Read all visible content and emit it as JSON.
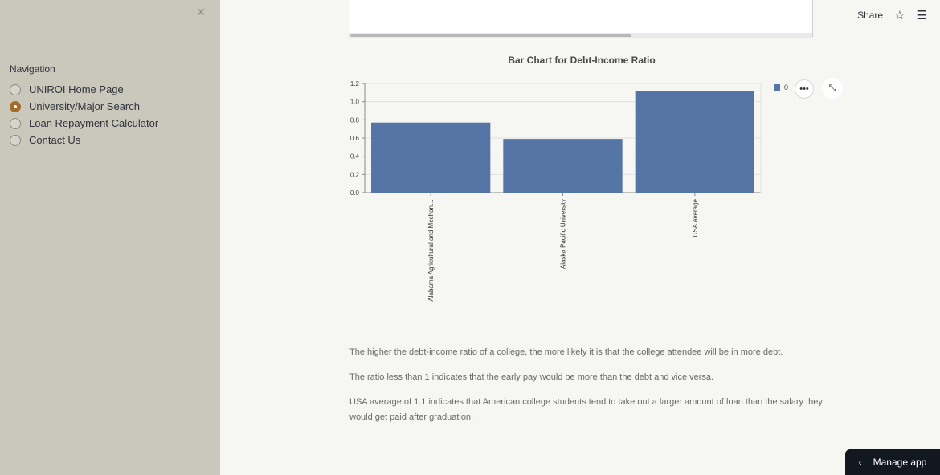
{
  "sidebar": {
    "close_icon": "×",
    "nav_title": "Navigation",
    "items": [
      {
        "label": "UNIROI Home Page",
        "selected": false
      },
      {
        "label": "University/Major Search",
        "selected": true
      },
      {
        "label": "Loan Repayment Calculator",
        "selected": false
      },
      {
        "label": "Contact Us",
        "selected": false
      }
    ]
  },
  "header": {
    "share_label": "Share",
    "star_icon": "☆",
    "menu_icon": "☰"
  },
  "chart": {
    "title": "Bar Chart for Debt-Income Ratio",
    "legend_label": "0",
    "more_icon": "•••",
    "expand_icon": "⤡"
  },
  "chart_data": {
    "type": "bar",
    "categories": [
      "Alabama Agricultural and Mechan…",
      "Alaska Pacific University",
      "USA Average"
    ],
    "values": [
      0.77,
      0.59,
      1.12
    ],
    "ylim": [
      0,
      1.2
    ],
    "yticks": [
      "0.0",
      "0.2",
      "0.4",
      "0.6",
      "0.8",
      "1.0",
      "1.2"
    ],
    "series": [
      {
        "name": "0",
        "values": [
          0.77,
          0.59,
          1.12
        ]
      }
    ],
    "bar_color": "#5575a7",
    "grid": true,
    "legend": "top-right"
  },
  "notes": [
    "The higher the debt-income ratio of a college, the more likely it is that the college attendee will be in more debt.",
    "The ratio less than 1 indicates that the early pay would be more than the debt and vice versa.",
    "USA average of 1.1 indicates that American college students tend to take out a larger amount of loan than the salary they would get paid after graduation."
  ],
  "footer": {
    "manage_label": "Manage app",
    "chevron_icon": "‹"
  }
}
